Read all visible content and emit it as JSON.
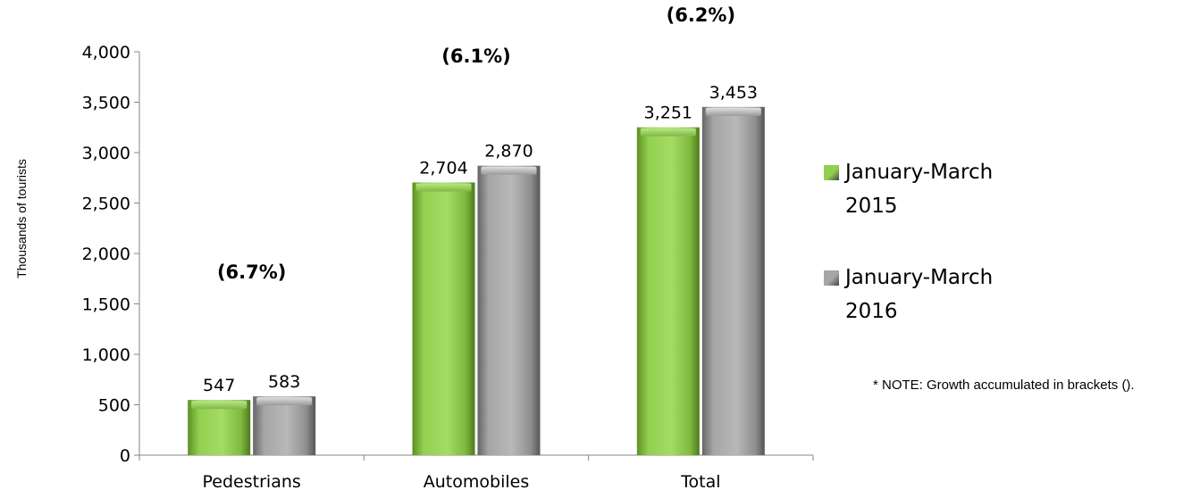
{
  "chart_data": {
    "type": "bar",
    "categories": [
      "Pedestrians",
      "Automobiles",
      "Total"
    ],
    "series": [
      {
        "name": "January-March 2015",
        "values": [
          547,
          2704,
          3251
        ],
        "color": "#92d050"
      },
      {
        "name": "January-March 2016",
        "values": [
          583,
          2870,
          3453
        ],
        "color": "#a6a6a6"
      }
    ],
    "value_labels": [
      [
        "547",
        "2,704",
        "3,251"
      ],
      [
        "583",
        "2,870",
        "3,453"
      ]
    ],
    "growth_labels": [
      "(6.7%)",
      "(6.1%)",
      "(6.2%)"
    ],
    "ylabel": "Thousands of tourists",
    "ylim": [
      0,
      4000
    ],
    "y_ticks": [
      0,
      500,
      1000,
      1500,
      2000,
      2500,
      3000,
      3500,
      4000
    ],
    "y_tick_labels": [
      "0",
      "500",
      "1,000",
      "1,500",
      "2,000",
      "2,500",
      "3,000",
      "3,500",
      "4,000"
    ],
    "grid": false,
    "legend_position": "right"
  },
  "note": "* NOTE: Growth accumulated in brackets ()."
}
